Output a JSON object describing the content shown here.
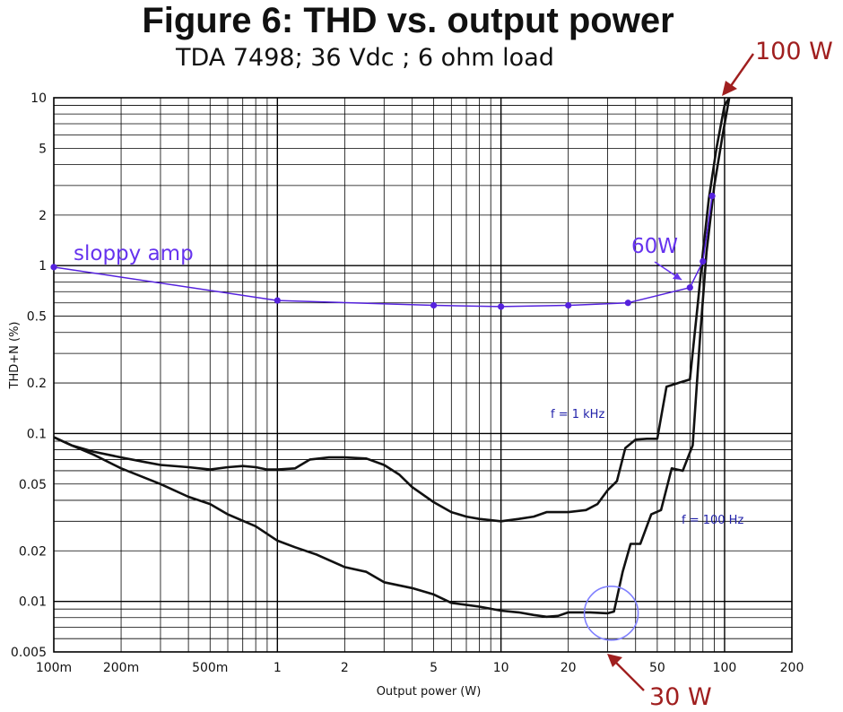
{
  "chart_data": {
    "type": "line",
    "title": "Figure 6: THD vs. output power",
    "subtitle": "TDA 7498; 36 Vdc ; 6 ohm load",
    "xlabel": "Output power (W)",
    "ylabel": "THD+N (%)",
    "x_scale": "log",
    "y_scale": "log",
    "xlim": [
      0.1,
      200
    ],
    "ylim": [
      0.005,
      10
    ],
    "grid": true,
    "x_ticks": [
      {
        "value": 0.1,
        "label": "100m"
      },
      {
        "value": 0.2,
        "label": "200m"
      },
      {
        "value": 0.5,
        "label": "500m"
      },
      {
        "value": 1,
        "label": "1"
      },
      {
        "value": 2,
        "label": "2"
      },
      {
        "value": 5,
        "label": "5"
      },
      {
        "value": 10,
        "label": "10"
      },
      {
        "value": 20,
        "label": "20"
      },
      {
        "value": 50,
        "label": "50"
      },
      {
        "value": 100,
        "label": "100"
      },
      {
        "value": 200,
        "label": "200"
      }
    ],
    "y_ticks": [
      {
        "value": 0.005,
        "label": "0.005"
      },
      {
        "value": 0.01,
        "label": "0.01"
      },
      {
        "value": 0.02,
        "label": "0.02"
      },
      {
        "value": 0.05,
        "label": "0.05"
      },
      {
        "value": 0.1,
        "label": "0.1"
      },
      {
        "value": 0.2,
        "label": "0.2"
      },
      {
        "value": 0.5,
        "label": "0.5"
      },
      {
        "value": 1,
        "label": "1"
      },
      {
        "value": 2,
        "label": "2"
      },
      {
        "value": 5,
        "label": "5"
      },
      {
        "value": 10,
        "label": "10"
      }
    ],
    "series": [
      {
        "name": "f = 1 kHz",
        "color": "#111111",
        "points": [
          [
            0.1,
            0.095
          ],
          [
            0.12,
            0.085
          ],
          [
            0.15,
            0.078
          ],
          [
            0.2,
            0.072
          ],
          [
            0.25,
            0.068
          ],
          [
            0.3,
            0.065
          ],
          [
            0.4,
            0.063
          ],
          [
            0.5,
            0.061
          ],
          [
            0.6,
            0.063
          ],
          [
            0.7,
            0.064
          ],
          [
            0.8,
            0.063
          ],
          [
            0.9,
            0.061
          ],
          [
            1,
            0.061
          ],
          [
            1.2,
            0.062
          ],
          [
            1.4,
            0.07
          ],
          [
            1.7,
            0.072
          ],
          [
            2,
            0.072
          ],
          [
            2.5,
            0.071
          ],
          [
            3,
            0.065
          ],
          [
            3.5,
            0.057
          ],
          [
            4,
            0.048
          ],
          [
            5,
            0.039
          ],
          [
            6,
            0.034
          ],
          [
            7,
            0.032
          ],
          [
            8,
            0.031
          ],
          [
            10,
            0.03
          ],
          [
            12,
            0.031
          ],
          [
            14,
            0.032
          ],
          [
            16,
            0.034
          ],
          [
            20,
            0.034
          ],
          [
            24,
            0.035
          ],
          [
            27,
            0.038
          ],
          [
            30,
            0.046
          ],
          [
            33,
            0.052
          ],
          [
            36,
            0.082
          ],
          [
            40,
            0.092
          ],
          [
            45,
            0.093
          ],
          [
            50,
            0.093
          ],
          [
            55,
            0.19
          ],
          [
            62,
            0.2
          ],
          [
            70,
            0.21
          ],
          [
            76,
            0.6
          ],
          [
            80,
            1.2
          ],
          [
            85,
            2.5
          ],
          [
            92,
            5
          ],
          [
            100,
            9
          ],
          [
            105,
            10
          ]
        ]
      },
      {
        "name": "f = 100 Hz",
        "color": "#111111",
        "points": [
          [
            0.1,
            0.095
          ],
          [
            0.12,
            0.085
          ],
          [
            0.15,
            0.075
          ],
          [
            0.2,
            0.062
          ],
          [
            0.3,
            0.05
          ],
          [
            0.4,
            0.042
          ],
          [
            0.5,
            0.038
          ],
          [
            0.6,
            0.033
          ],
          [
            0.8,
            0.028
          ],
          [
            1,
            0.023
          ],
          [
            1.2,
            0.021
          ],
          [
            1.5,
            0.019
          ],
          [
            2,
            0.016
          ],
          [
            2.5,
            0.015
          ],
          [
            3,
            0.013
          ],
          [
            4,
            0.012
          ],
          [
            5,
            0.011
          ],
          [
            6,
            0.0098
          ],
          [
            8,
            0.0093
          ],
          [
            10,
            0.0088
          ],
          [
            12,
            0.0086
          ],
          [
            14,
            0.0083
          ],
          [
            16,
            0.0081
          ],
          [
            18,
            0.0082
          ],
          [
            20,
            0.0086
          ],
          [
            25,
            0.0086
          ],
          [
            30,
            0.0085
          ],
          [
            32,
            0.0087
          ],
          [
            35,
            0.015
          ],
          [
            38,
            0.022
          ],
          [
            42,
            0.022
          ],
          [
            47,
            0.033
          ],
          [
            52,
            0.035
          ],
          [
            58,
            0.062
          ],
          [
            65,
            0.06
          ],
          [
            72,
            0.085
          ],
          [
            78,
            0.4
          ],
          [
            83,
            1.2
          ],
          [
            90,
            3
          ],
          [
            98,
            6
          ],
          [
            105,
            10
          ]
        ]
      },
      {
        "name": "sloppy amp",
        "color": "#5522dd",
        "points": [
          [
            0.1,
            0.98
          ],
          [
            1,
            0.62
          ],
          [
            5,
            0.58
          ],
          [
            10,
            0.57
          ],
          [
            20,
            0.58
          ],
          [
            37,
            0.6
          ],
          [
            70,
            0.74
          ],
          [
            80,
            1.06
          ],
          [
            88,
            2.6
          ]
        ],
        "markers": true
      }
    ],
    "annotations": [
      {
        "text": "f = 1 kHz",
        "color": "#2222aa"
      },
      {
        "text": "f = 100 Hz",
        "color": "#2222aa"
      },
      {
        "text": "sloppy amp",
        "color": "#6633ee"
      },
      {
        "text": "60W",
        "color": "#6633ee",
        "points_to_x": 70
      },
      {
        "text": "100 W",
        "color": "#a01f1f",
        "points_to_x": 100
      },
      {
        "text": "30 W",
        "color": "#a01f1f",
        "points_to_x": 30
      }
    ],
    "circle_marker": {
      "x": 30,
      "y": 0.0085,
      "color": "#8080ff"
    }
  }
}
